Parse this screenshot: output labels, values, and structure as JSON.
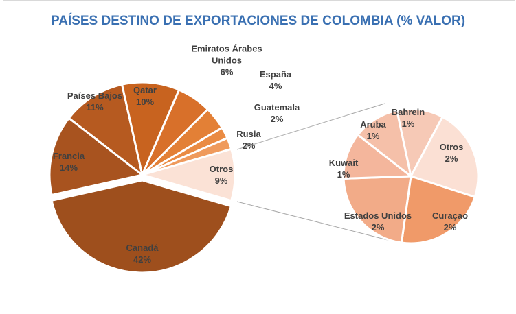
{
  "chart_data": [
    {
      "type": "pie",
      "title": "PAÍSES DESTINO DE EXPORTACIONES DE COLOMBIA (% VALOR)",
      "categories": [
        "Canadá",
        "Francia",
        "Países Bajos",
        "Qatar",
        "Emiratos Árabes Unidos",
        "España",
        "Guatemala",
        "Rusia",
        "Otros"
      ],
      "values": [
        42,
        14,
        11,
        10,
        6,
        4,
        2,
        2,
        9
      ],
      "value_labels": [
        "42%",
        "14%",
        "11%",
        "10%",
        "6%",
        "4%",
        "2%",
        "2%",
        "9%"
      ],
      "colors": [
        "#9e4f1d",
        "#a8531f",
        "#b65a20",
        "#c8631f",
        "#d8702a",
        "#e38036",
        "#ea8b43",
        "#ef9a5c",
        "#fbe2d6"
      ]
    },
    {
      "type": "pie",
      "categories": [
        "Bahrein",
        "Otros",
        "Curaçao",
        "Estados Unidos",
        "Kuwait",
        "Aruba"
      ],
      "values": [
        1,
        2,
        2,
        2,
        1,
        1
      ],
      "value_labels": [
        "1%",
        "2%",
        "2%",
        "2%",
        "1%",
        "1%"
      ],
      "colors": [
        "#f6c9b6",
        "#fbe0d4",
        "#f09a69",
        "#f2ab88",
        "#f4b69c",
        "#f5c0a9"
      ]
    }
  ]
}
